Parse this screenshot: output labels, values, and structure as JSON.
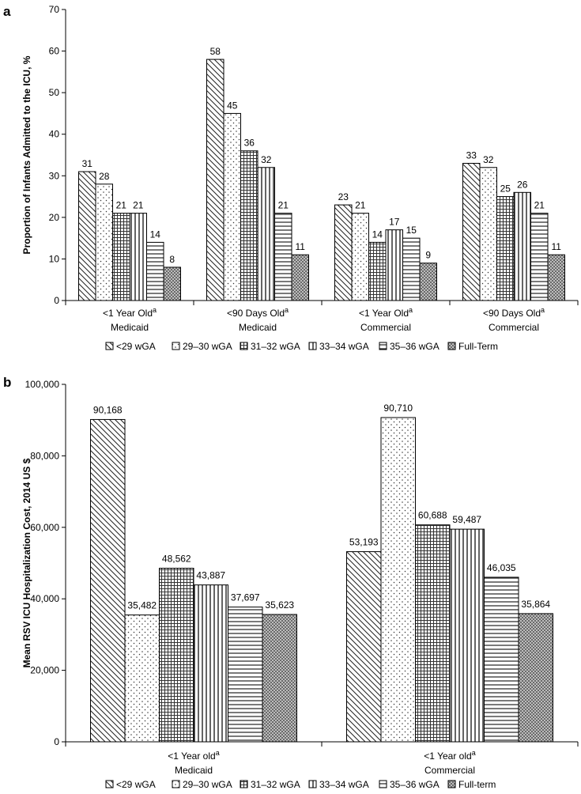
{
  "chart_data": [
    {
      "type": "bar",
      "panel_label": "a",
      "ylabel": "Proportion of Infants Admitted to the ICU, %",
      "ylim": [
        0,
        70
      ],
      "yticks": [
        "0",
        "10",
        "20",
        "30",
        "40",
        "50",
        "60",
        "70"
      ],
      "categories": [
        {
          "line1": "<1 Year Old",
          "sup": "a",
          "line2": "Medicaid"
        },
        {
          "line1": "<90 Days Old",
          "sup": "a",
          "line2": "Medicaid"
        },
        {
          "line1": "<1 Year Old",
          "sup": "a",
          "line2": "Commercial"
        },
        {
          "line1": "<90 Days Old",
          "sup": "a",
          "line2": "Commercial"
        }
      ],
      "series": [
        {
          "name": "<29 wGA",
          "pattern": "diag",
          "values": [
            31,
            58,
            23,
            33
          ],
          "labels": [
            "31",
            "58",
            "23",
            "33"
          ]
        },
        {
          "name": "29–30 wGA",
          "pattern": "dots",
          "values": [
            28,
            45,
            21,
            32
          ],
          "labels": [
            "28",
            "45",
            "21",
            "32"
          ]
        },
        {
          "name": "31–32 wGA",
          "pattern": "grid",
          "values": [
            21,
            36,
            14,
            25
          ],
          "labels": [
            "21",
            "36",
            "14",
            "25"
          ]
        },
        {
          "name": "33–34 wGA",
          "pattern": "vert",
          "values": [
            21,
            32,
            17,
            26
          ],
          "labels": [
            "21",
            "32",
            "17",
            "26"
          ]
        },
        {
          "name": "35–36 wGA",
          "pattern": "horiz",
          "values": [
            14,
            21,
            15,
            21
          ],
          "labels": [
            "14",
            "21",
            "15",
            "21"
          ]
        },
        {
          "name": "Full-Term",
          "pattern": "check",
          "values": [
            8,
            11,
            9,
            11
          ],
          "labels": [
            "8",
            "11",
            "9",
            "11"
          ]
        }
      ]
    },
    {
      "type": "bar",
      "panel_label": "b",
      "ylabel": "Mean RSV ICU Hospitalization Cost, 2014 US $",
      "ylim": [
        0,
        100000
      ],
      "yticks": [
        "0",
        "20,000",
        "40,000",
        "60,000",
        "80,000",
        "100,000"
      ],
      "categories": [
        {
          "line1": "<1 Year old",
          "sup": "a",
          "line2": "Medicaid"
        },
        {
          "line1": "<1 Year old",
          "sup": "a",
          "line2": "Commercial"
        }
      ],
      "series": [
        {
          "name": "<29 wGA",
          "pattern": "diag",
          "values": [
            90168,
            53193
          ],
          "labels": [
            "90,168",
            "53,193"
          ]
        },
        {
          "name": "29–30 wGA",
          "pattern": "dots",
          "values": [
            35482,
            90710
          ],
          "labels": [
            "35,482",
            "90,710"
          ]
        },
        {
          "name": "31–32 wGA",
          "pattern": "grid",
          "values": [
            48562,
            60688
          ],
          "labels": [
            "48,562",
            "60,688"
          ]
        },
        {
          "name": "33–34 wGA",
          "pattern": "vert",
          "values": [
            43887,
            59487
          ],
          "labels": [
            "43,887",
            "59,487"
          ]
        },
        {
          "name": "35–36 wGA",
          "pattern": "horiz",
          "values": [
            37697,
            46035
          ],
          "labels": [
            "37,697",
            "46,035"
          ]
        },
        {
          "name": "Full-term",
          "pattern": "check",
          "values": [
            35623,
            35864
          ],
          "labels": [
            "35,623",
            "35,864"
          ]
        }
      ]
    }
  ]
}
